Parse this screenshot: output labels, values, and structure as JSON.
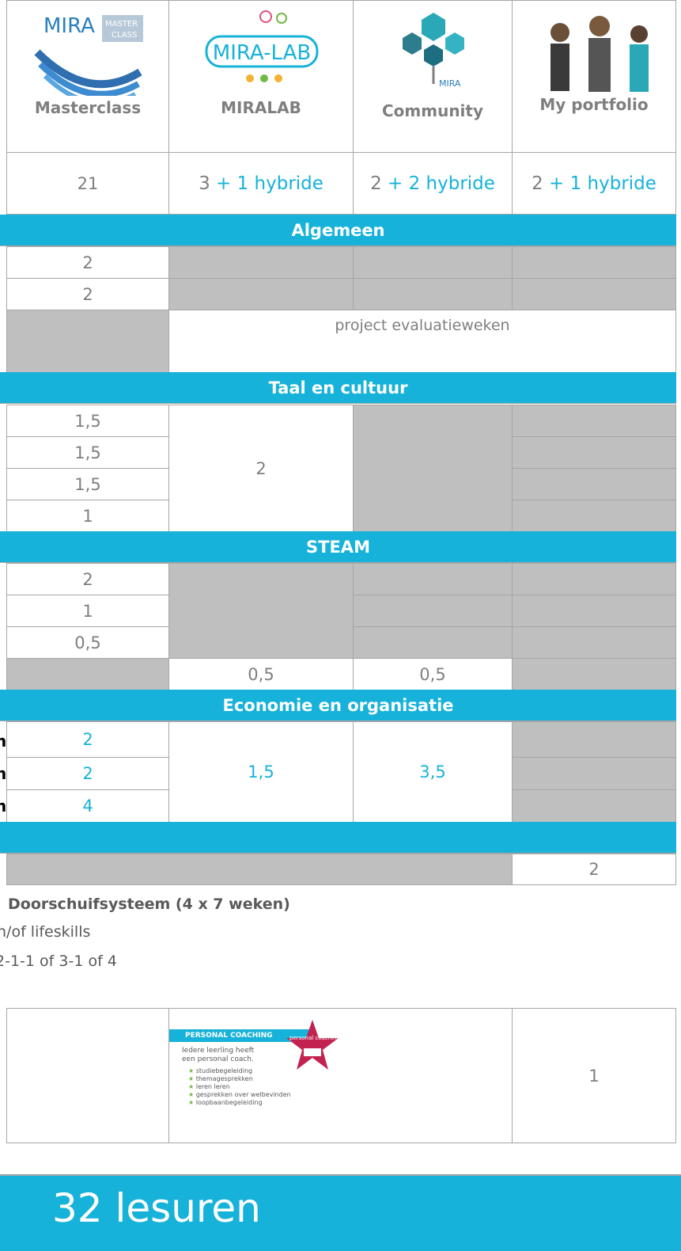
{
  "logos": {
    "masterclass": [
      "MIRA",
      "MASTER",
      "CLASS"
    ],
    "miralab": "MIRA-LAB",
    "community": "MIRA"
  },
  "columns": [
    "Masterclass",
    "MIRALAB",
    "Community",
    "My portfolio"
  ],
  "hours": [
    [
      "21"
    ],
    [
      "3",
      "+ 1 hybride"
    ],
    [
      "2",
      "+ 2 hybride"
    ],
    [
      "2",
      "+ 1 hybride"
    ]
  ],
  "algemeen": {
    "title": "Algemeen",
    "masterclass": [
      "2",
      "2"
    ],
    "project": "project evaluatieweken"
  },
  "taal": {
    "title": "Taal en cultuur",
    "masterclass": [
      "1,5",
      "1,5",
      "1,5",
      "1"
    ],
    "miralab": "2"
  },
  "steam": {
    "title": "STEAM",
    "masterclass": [
      "2",
      "1",
      "0,5"
    ],
    "miralab": "0,5",
    "community": "0,5"
  },
  "economie": {
    "title": "Economie en organisatie",
    "left": [
      "n",
      "n",
      "n"
    ],
    "masterclass": [
      "2",
      "2",
      "4"
    ],
    "miralab": "1,5",
    "community": "3,5"
  },
  "portfolio_row": "2",
  "notes": [
    "Doorschuifsysteem (4 x 7 weken)",
    "n/of lifeskills",
    "2-1-1 of 3-1 of 4"
  ],
  "coaching": {
    "title": "PERSONAL COACHING",
    "badge": "personal coaching",
    "intro": [
      "Iedere leerling heeft",
      "een personal coach."
    ],
    "items": [
      "studiebegeleiding",
      "themagesprekken",
      "leren leren",
      "gesprekken over welbevinden",
      "loopbaanbegeleiding"
    ],
    "hours": "1"
  },
  "total": "32 lesuren"
}
